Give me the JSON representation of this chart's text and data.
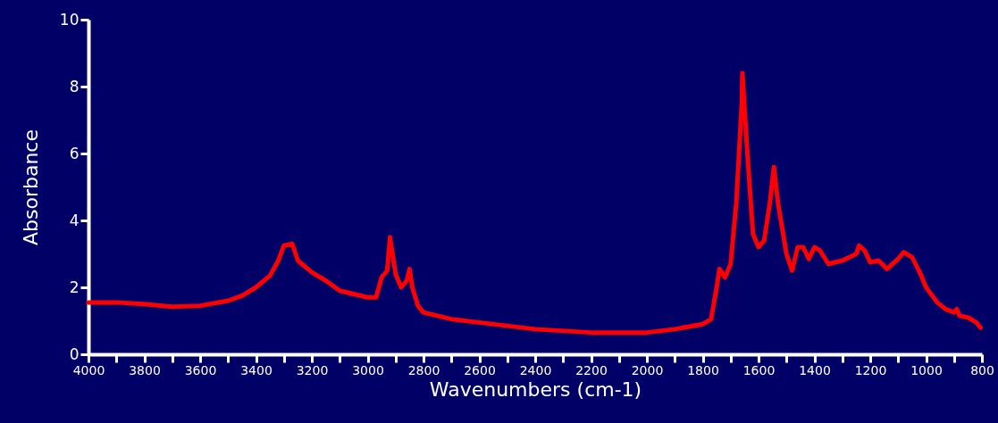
{
  "chart_data": {
    "type": "line",
    "xlabel": "Wavenumbers (cm-1)",
    "ylabel": "Absorbance",
    "xlim": [
      4000,
      800
    ],
    "ylim": [
      0,
      10
    ],
    "xticks": [
      4000,
      {
        "value": 3900,
        "label": null
      },
      3800,
      {
        "value": 3700,
        "label": null
      },
      3600,
      {
        "value": 3500,
        "label": null
      },
      3400,
      {
        "value": 3300,
        "label": null
      },
      3200,
      {
        "value": 3100,
        "label": null
      },
      3000,
      {
        "value": 2900,
        "label": null
      },
      2800,
      {
        "value": 2700,
        "label": null
      },
      2600,
      {
        "value": 2500,
        "label": null
      },
      2400,
      {
        "value": 2300,
        "label": null
      },
      2200,
      {
        "value": 2100,
        "label": null
      },
      2000,
      {
        "value": 1900,
        "label": null
      },
      1800,
      {
        "value": 1700,
        "label": null
      },
      1600,
      {
        "value": 1500,
        "label": null
      },
      1400,
      {
        "value": 1300,
        "label": null
      },
      1200,
      {
        "value": 1100,
        "label": null
      },
      1000,
      {
        "value": 900,
        "label": null
      },
      800
    ],
    "yticks": [
      0,
      2,
      4,
      6,
      8,
      10
    ],
    "grid": false,
    "marker": "none",
    "line_style": "solid",
    "series": [
      {
        "color": "#ff0000",
        "x": [
          4000,
          3900,
          3800,
          3700,
          3600,
          3500,
          3450,
          3400,
          3350,
          3320,
          3300,
          3270,
          3250,
          3200,
          3150,
          3100,
          3050,
          3000,
          2970,
          2950,
          2930,
          2920,
          2900,
          2880,
          2860,
          2850,
          2840,
          2820,
          2800,
          2700,
          2600,
          2400,
          2200,
          2000,
          1900,
          1800,
          1770,
          1750,
          1740,
          1720,
          1700,
          1680,
          1660,
          1658,
          1640,
          1620,
          1600,
          1580,
          1560,
          1545,
          1530,
          1500,
          1480,
          1460,
          1440,
          1420,
          1400,
          1380,
          1350,
          1300,
          1250,
          1240,
          1220,
          1200,
          1170,
          1140,
          1100,
          1080,
          1050,
          1020,
          1000,
          960,
          930,
          900,
          890,
          880,
          850,
          820,
          805
        ],
        "values": [
          1.55,
          1.55,
          1.5,
          1.42,
          1.45,
          1.6,
          1.75,
          2.0,
          2.35,
          2.8,
          3.25,
          3.3,
          2.8,
          2.45,
          2.2,
          1.9,
          1.8,
          1.7,
          1.7,
          2.3,
          2.5,
          3.5,
          2.4,
          2.0,
          2.2,
          2.55,
          2.0,
          1.45,
          1.25,
          1.05,
          0.95,
          0.75,
          0.65,
          0.65,
          0.75,
          0.9,
          1.05,
          2.0,
          2.55,
          2.3,
          2.7,
          4.5,
          7.5,
          8.4,
          6.0,
          3.6,
          3.2,
          3.4,
          4.5,
          5.6,
          4.5,
          3.0,
          2.5,
          3.2,
          3.2,
          2.85,
          3.2,
          3.1,
          2.7,
          2.8,
          3.0,
          3.25,
          3.1,
          2.75,
          2.8,
          2.55,
          2.85,
          3.05,
          2.9,
          2.4,
          2.0,
          1.55,
          1.35,
          1.25,
          1.35,
          1.15,
          1.1,
          0.95,
          0.8
        ]
      }
    ]
  }
}
